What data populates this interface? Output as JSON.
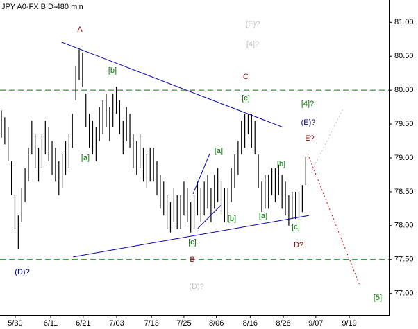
{
  "chart_data": {
    "type": "ohlc",
    "title": "JPY A0-FX BID-480 min",
    "xlim": [
      0,
      115
    ],
    "xticks": [
      {
        "value": 4.5,
        "label": "5/30"
      },
      {
        "value": 15,
        "label": "6/11"
      },
      {
        "value": 24.6,
        "label": "6/21"
      },
      {
        "value": 34.5,
        "label": "7/03"
      },
      {
        "value": 44.8,
        "label": "7/13"
      },
      {
        "value": 54.4,
        "label": "7/25"
      },
      {
        "value": 64,
        "label": "8/06"
      },
      {
        "value": 74,
        "label": "8/16"
      },
      {
        "value": 83.8,
        "label": "8/28"
      },
      {
        "value": 93.4,
        "label": "9/07"
      },
      {
        "value": 103.3,
        "label": "9/19"
      }
    ],
    "ylim": [
      76.68,
      81.33
    ],
    "yticks": [
      {
        "value": 77,
        "label": "77.00"
      },
      {
        "value": 77.5,
        "label": "77.50"
      },
      {
        "value": 78,
        "label": "78.00"
      },
      {
        "value": 78.5,
        "label": "78.50"
      },
      {
        "value": 79,
        "label": "79.00"
      },
      {
        "value": 79.5,
        "label": "79.50"
      },
      {
        "value": 80,
        "label": "80.00"
      },
      {
        "value": 80.5,
        "label": "80.50"
      },
      {
        "value": 81,
        "label": "81.00"
      }
    ],
    "bar_color": "#000000",
    "high": [
      79.7,
      79.6,
      79.45,
      78.95,
      78.45,
      78.15,
      78.55,
      78.85,
      79.15,
      79.55,
      79.35,
      79.15,
      79.35,
      79.55,
      79.45,
      79.25,
      79.15,
      78.95,
      79.05,
      79.25,
      79.35,
      79.65,
      80.35,
      80.6,
      80.55,
      79.95,
      79.65,
      79.55,
      79.45,
      79.75,
      79.85,
      79.95,
      79.75,
      79.95,
      80.05,
      79.85,
      79.55,
      79.75,
      79.65,
      79.35,
      79.25,
      79.35,
      79.15,
      79.05,
      79.15,
      79.15,
      78.95,
      78.75,
      78.65,
      78.45,
      78.35,
      78.55,
      78.45,
      78.45,
      78.65,
      78.55,
      78.35,
      78.45,
      78.65,
      78.55,
      78.65,
      78.75,
      78.55,
      78.75,
      78.85,
      78.65,
      78.55,
      78.55,
      78.85,
      79.05,
      79.25,
      79.55,
      79.65,
      79.65,
      79.65,
      79.55,
      79.05,
      78.65,
      78.75,
      78.75,
      78.85,
      78.85,
      78.9,
      78.75,
      78.65,
      78.45,
      78.5,
      78.5,
      78.5,
      78.6,
      79.02
    ],
    "low": [
      79.3,
      79.2,
      78.95,
      78.45,
      77.95,
      77.65,
      78.05,
      78.35,
      78.65,
      79.05,
      78.85,
      78.65,
      78.85,
      79.05,
      78.95,
      78.75,
      78.65,
      78.45,
      78.55,
      78.75,
      78.85,
      79.15,
      79.85,
      80.15,
      80.05,
      79.45,
      79.15,
      79.05,
      78.95,
      79.25,
      79.35,
      79.45,
      79.25,
      79.45,
      79.65,
      79.35,
      79.05,
      79.25,
      79.15,
      78.85,
      78.75,
      78.85,
      78.65,
      78.55,
      78.65,
      78.65,
      78.45,
      78.25,
      78.15,
      77.95,
      77.9,
      78.05,
      77.95,
      77.95,
      78.15,
      78.05,
      77.9,
      77.95,
      78.15,
      78.05,
      78.15,
      78.25,
      78.05,
      78.25,
      78.35,
      78.15,
      78.05,
      78.05,
      78.35,
      78.55,
      78.75,
      79.05,
      79.15,
      79.35,
      79.15,
      79.05,
      78.55,
      78.2,
      78.25,
      78.25,
      78.45,
      78.35,
      78.45,
      78.25,
      78.15,
      78.0,
      78.1,
      78.1,
      78.1,
      78.2,
      78.6
    ],
    "levels": {
      "color": "#008000",
      "values": [
        80,
        77.5
      ]
    },
    "trendlines": [
      {
        "color": "#0000aa",
        "dash": "none",
        "x": [
          18.1,
          83.8
        ],
        "y": [
          80.71,
          79.45
        ]
      },
      {
        "color": "#0000aa",
        "dash": "none",
        "x": [
          21.6,
          91.4
        ],
        "y": [
          77.54,
          78.15
        ]
      },
      {
        "color": "#0000aa",
        "dash": "none",
        "x": [
          57.1,
          62.0
        ],
        "y": [
          78.47,
          79.06
        ]
      },
      {
        "color": "#0000aa",
        "dash": "none",
        "x": [
          58.5,
          65.3
        ],
        "y": [
          77.96,
          78.3
        ]
      },
      {
        "color": "#dd0000",
        "dash": "2,3",
        "x": [
          91,
          106.4
        ],
        "y": [
          79.06,
          77.12
        ]
      },
      {
        "color": "#bbbbbb",
        "dash": "2,3",
        "x": [
          92,
          101.6
        ],
        "y": [
          78.78,
          79.74
        ]
      }
    ],
    "annotations": [
      {
        "text": "A",
        "color": "#8b0000"
      },
      {
        "text": "C",
        "color": "#8b0000"
      },
      {
        "text": "B",
        "color": "#8b0000"
      },
      {
        "text": "D?",
        "color": "#8b0000"
      },
      {
        "text": "E?",
        "color": "#8b0000"
      },
      {
        "text": "(E)?",
        "color": "#c0c0c0"
      },
      {
        "text": "[4]?",
        "color": "#c0c0c0"
      },
      {
        "text": "(D)?",
        "color": "#c0c0c0"
      },
      {
        "text": "(D)?",
        "color": "#000080"
      },
      {
        "text": "(E)?",
        "color": "#000080"
      },
      {
        "text": "[4]?",
        "color": "#008000"
      },
      {
        "text": "[5]",
        "color": "#008000"
      },
      {
        "text": "[b]",
        "color": "#008000"
      },
      {
        "text": "[a]",
        "color": "#008000"
      },
      {
        "text": "[c]",
        "color": "#008000"
      },
      {
        "text": "[a]",
        "color": "#008000"
      },
      {
        "text": "[b]",
        "color": "#008000"
      },
      {
        "text": "[a]",
        "color": "#008000"
      },
      {
        "text": "[b]",
        "color": "#008000"
      },
      {
        "text": "[c]",
        "color": "#008000"
      },
      {
        "text": "[c]",
        "color": "#008000"
      }
    ]
  }
}
